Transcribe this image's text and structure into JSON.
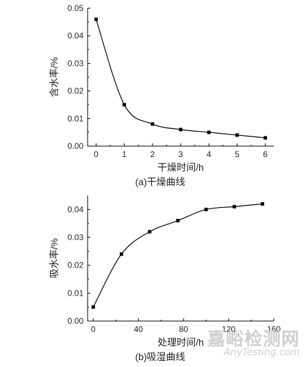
{
  "chart_data": [
    {
      "type": "scatter",
      "caption": "(a)干燥曲线",
      "title": "",
      "xlabel": "干燥时间/h",
      "ylabel": "含水率/%",
      "xlim": [
        -0.3,
        6.3
      ],
      "ylim": [
        0,
        0.05
      ],
      "xticks": [
        "0",
        "1",
        "2",
        "3",
        "4",
        "5",
        "6"
      ],
      "xtick_values": [
        0,
        1,
        2,
        3,
        4,
        5,
        6
      ],
      "yticks": [
        "0.00",
        "0.01",
        "0.02",
        "0.03",
        "0.04",
        "0.05"
      ],
      "ytick_values": [
        0,
        0.01,
        0.02,
        0.03,
        0.04,
        0.05
      ],
      "x": [
        0,
        1,
        2,
        3,
        4,
        5,
        6
      ],
      "y": [
        0.046,
        0.015,
        0.008,
        0.006,
        0.005,
        0.004,
        0.003
      ],
      "fit_curve": true,
      "grid": false
    },
    {
      "type": "scatter",
      "caption": "(b)吸湿曲线",
      "title": "",
      "xlabel": "处理时间/h",
      "ylabel": "吸水率/%",
      "xlim": [
        -5,
        160
      ],
      "ylim": [
        0,
        0.045
      ],
      "xticks": [
        "0",
        "40",
        "80",
        "120",
        "160"
      ],
      "xtick_values": [
        0,
        40,
        80,
        120,
        160
      ],
      "yticks": [
        "0.00",
        "0.01",
        "0.02",
        "0.03",
        "0.04"
      ],
      "ytick_values": [
        0,
        0.01,
        0.02,
        0.03,
        0.04
      ],
      "x": [
        0,
        25,
        50,
        75,
        100,
        125,
        150
      ],
      "y": [
        0.005,
        0.024,
        0.032,
        0.036,
        0.04,
        0.041,
        0.042
      ],
      "fit_curve": true,
      "grid": false
    }
  ],
  "watermark": {
    "cn": "嘉峪检测网",
    "en": "AnyTesting.com"
  }
}
